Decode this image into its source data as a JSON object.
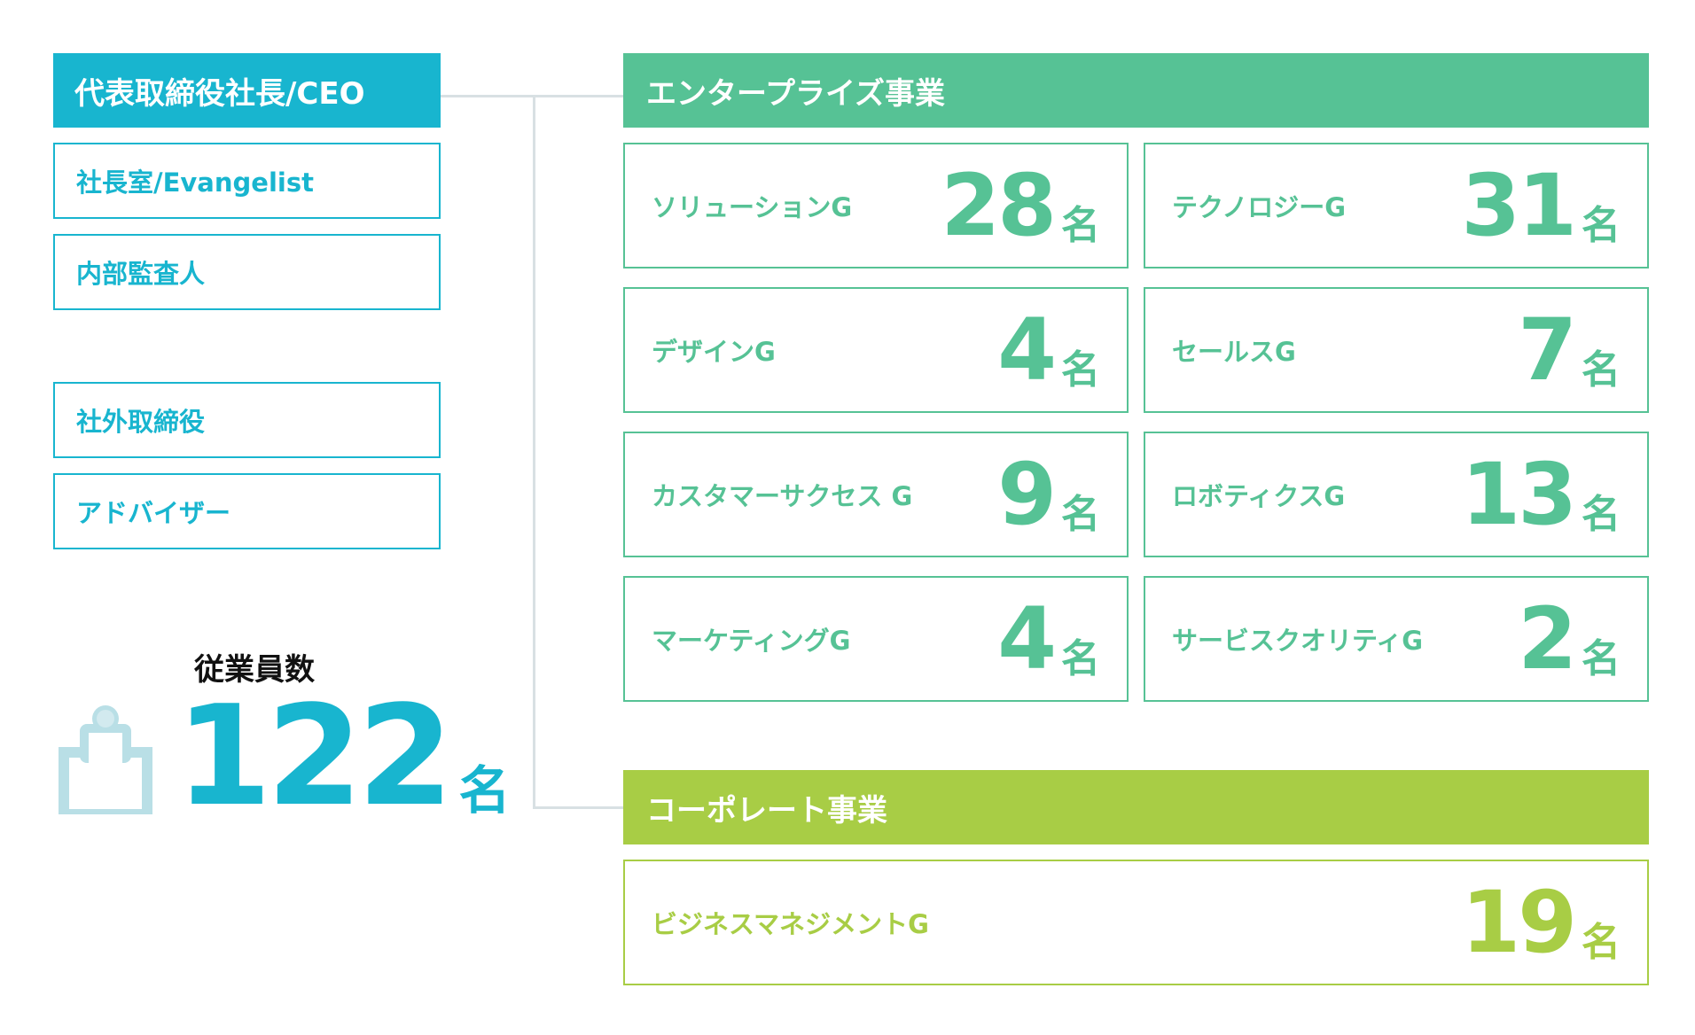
{
  "leadership": {
    "ceo": "代表取締役社長/CEO",
    "items_top": [
      "社長室/Evangelist",
      "内部監査人"
    ],
    "items_bottom": [
      "社外取締役",
      "アドバイザー"
    ]
  },
  "employees": {
    "title": "従業員数",
    "count": "122",
    "unit": "名",
    "icon": "person-badge-icon"
  },
  "enterprise": {
    "title": "エンタープライズ事業",
    "groups": [
      {
        "name": "ソリューションG",
        "count": "28",
        "unit": "名"
      },
      {
        "name": "テクノロジーG",
        "count": "31",
        "unit": "名"
      },
      {
        "name": "デザインG",
        "count": "4",
        "unit": "名"
      },
      {
        "name": "セールスG",
        "count": "7",
        "unit": "名"
      },
      {
        "name": "カスタマーサクセス G",
        "count": "9",
        "unit": "名"
      },
      {
        "name": "ロボティクスG",
        "count": "13",
        "unit": "名"
      },
      {
        "name": "マーケティングG",
        "count": "4",
        "unit": "名"
      },
      {
        "name": "サービスクオリティG",
        "count": "2",
        "unit": "名"
      }
    ]
  },
  "corporate": {
    "title": "コーポレート事業",
    "groups": [
      {
        "name": "ビジネスマネジメントG",
        "count": "19",
        "unit": "名"
      }
    ]
  },
  "colors": {
    "leadership": "#18b5cf",
    "enterprise": "#56c295",
    "corporate": "#a8cd45",
    "connector": "#d8e0e3"
  }
}
